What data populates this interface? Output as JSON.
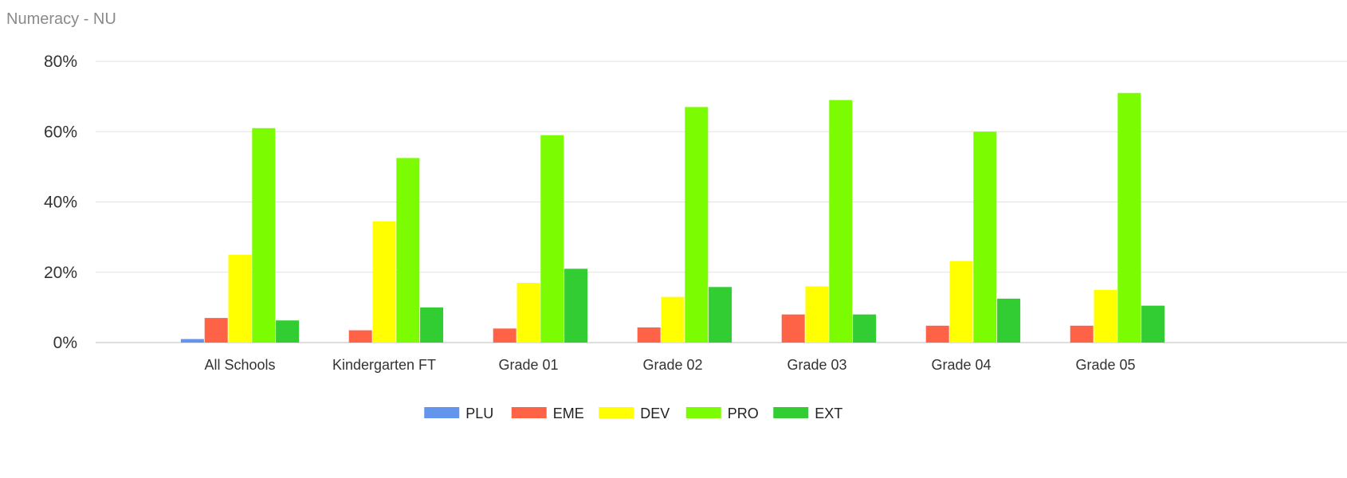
{
  "chart_data": {
    "type": "bar",
    "title": "Numeracy - NU",
    "xlabel": "",
    "ylabel": "",
    "ylim": [
      0,
      80
    ],
    "y_ticks": [
      "0%",
      "20%",
      "40%",
      "60%",
      "80%"
    ],
    "y_tick_values": [
      0,
      20,
      40,
      60,
      80
    ],
    "grid": true,
    "legend_position": "bottom",
    "categories": [
      "All Schools",
      "Kindergarten FT",
      "Grade 01",
      "Grade 02",
      "Grade 03",
      "Grade 04",
      "Grade 05"
    ],
    "series": [
      {
        "name": "PLU",
        "color": "#6495ED",
        "values": [
          1,
          0,
          0,
          0,
          0,
          0,
          0
        ]
      },
      {
        "name": "EME",
        "color": "#FF6347",
        "values": [
          7,
          3.5,
          4,
          4.3,
          8,
          4.8,
          4.8
        ]
      },
      {
        "name": "DEV",
        "color": "#FFFF00",
        "values": [
          25,
          34.5,
          17,
          13,
          16,
          23.2,
          15
        ]
      },
      {
        "name": "PRO",
        "color": "#7CFC00",
        "values": [
          61,
          52.5,
          59,
          67,
          69,
          60,
          71
        ]
      },
      {
        "name": "EXT",
        "color": "#32CD32",
        "values": [
          6.3,
          10,
          21,
          15.8,
          8,
          12.5,
          10.5
        ]
      }
    ]
  }
}
